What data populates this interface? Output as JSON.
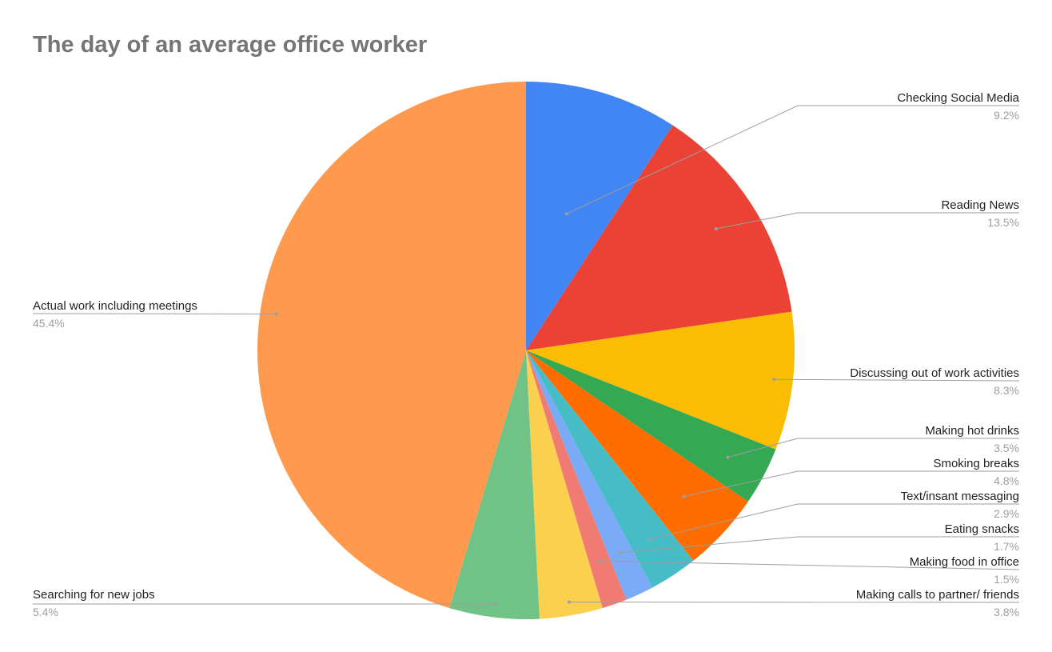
{
  "chart_data": {
    "type": "pie",
    "title": "The day of an average office worker",
    "slices": [
      {
        "label": "Checking Social Media",
        "value": 9.2,
        "pct_label": "9.2%",
        "color": "#4285f4"
      },
      {
        "label": "Reading News",
        "value": 13.5,
        "pct_label": "13.5%",
        "color": "#ea4335"
      },
      {
        "label": "Discussing out of work activities",
        "value": 8.3,
        "pct_label": "8.3%",
        "color": "#fbbc04"
      },
      {
        "label": "Making hot drinks",
        "value": 3.5,
        "pct_label": "3.5%",
        "color": "#34a853"
      },
      {
        "label": "Smoking breaks",
        "value": 4.8,
        "pct_label": "4.8%",
        "color": "#ff6d01"
      },
      {
        "label": "Text/insant messaging",
        "value": 2.9,
        "pct_label": "2.9%",
        "color": "#46bdc6"
      },
      {
        "label": "Eating snacks",
        "value": 1.7,
        "pct_label": "1.7%",
        "color": "#7baaf7"
      },
      {
        "label": "Making food in office",
        "value": 1.5,
        "pct_label": "1.5%",
        "color": "#f07b72"
      },
      {
        "label": "Making calls to partner/ friends",
        "value": 3.8,
        "pct_label": "3.8%",
        "color": "#fcd04f"
      },
      {
        "label": "Searching for new jobs",
        "value": 5.4,
        "pct_label": "5.4%",
        "color": "#71c287"
      },
      {
        "label": "Actual work including meetings",
        "value": 45.4,
        "pct_label": "45.4%",
        "color": "#ff994d"
      }
    ]
  }
}
